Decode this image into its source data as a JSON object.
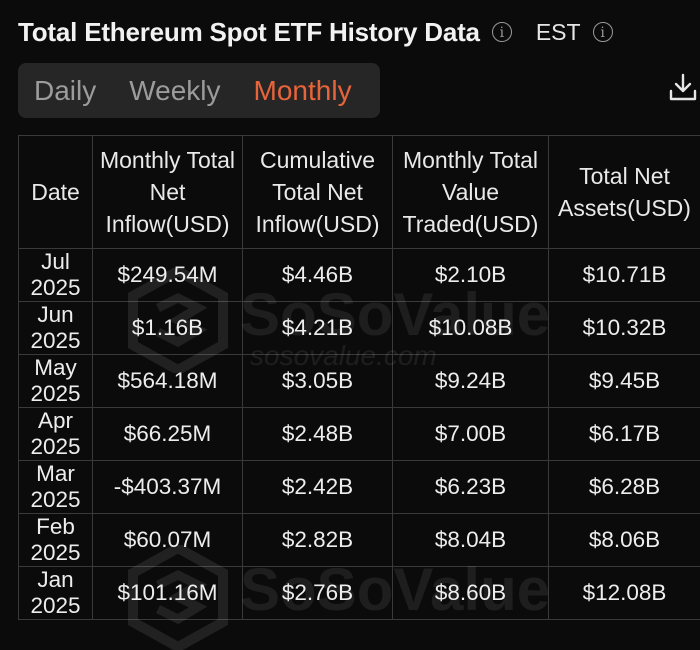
{
  "header": {
    "title": "Total Ethereum Spot ETF History Data",
    "timezone": "EST"
  },
  "tabs": [
    {
      "label": "Daily",
      "active": false
    },
    {
      "label": "Weekly",
      "active": false
    },
    {
      "label": "Monthly",
      "active": true
    }
  ],
  "colors": {
    "accent": "#e8643a",
    "positive": "#3ec55f",
    "negative": "#e5483c",
    "background": "#0b0b0b"
  },
  "table": {
    "columns": [
      "Date",
      "Monthly Total Net Inflow(USD)",
      "Cumulative Total Net Inflow(USD)",
      "Monthly Total Value Traded(USD)",
      "Total Net Assets(USD)"
    ],
    "rows": [
      {
        "date": "Jul 2025",
        "net_inflow": "$249.54M",
        "trend": "pos",
        "cumulative": "$4.46B",
        "traded": "$2.10B",
        "assets": "$10.71B"
      },
      {
        "date": "Jun 2025",
        "net_inflow": "$1.16B",
        "trend": "pos",
        "cumulative": "$4.21B",
        "traded": "$10.08B",
        "assets": "$10.32B"
      },
      {
        "date": "May 2025",
        "net_inflow": "$564.18M",
        "trend": "pos",
        "cumulative": "$3.05B",
        "traded": "$9.24B",
        "assets": "$9.45B"
      },
      {
        "date": "Apr 2025",
        "net_inflow": "$66.25M",
        "trend": "pos",
        "cumulative": "$2.48B",
        "traded": "$7.00B",
        "assets": "$6.17B"
      },
      {
        "date": "Mar 2025",
        "net_inflow": "-$403.37M",
        "trend": "neg",
        "cumulative": "$2.42B",
        "traded": "$6.23B",
        "assets": "$6.28B"
      },
      {
        "date": "Feb 2025",
        "net_inflow": "$60.07M",
        "trend": "pos",
        "cumulative": "$2.82B",
        "traded": "$8.04B",
        "assets": "$8.06B"
      },
      {
        "date": "Jan 2025",
        "net_inflow": "$101.16M",
        "trend": "pos",
        "cumulative": "$2.76B",
        "traded": "$8.60B",
        "assets": "$12.08B"
      }
    ]
  },
  "watermark": {
    "brand": "SoSoValue",
    "url": "sosovalue.com"
  },
  "icons": {
    "info": "info-icon",
    "download": "download-icon"
  }
}
